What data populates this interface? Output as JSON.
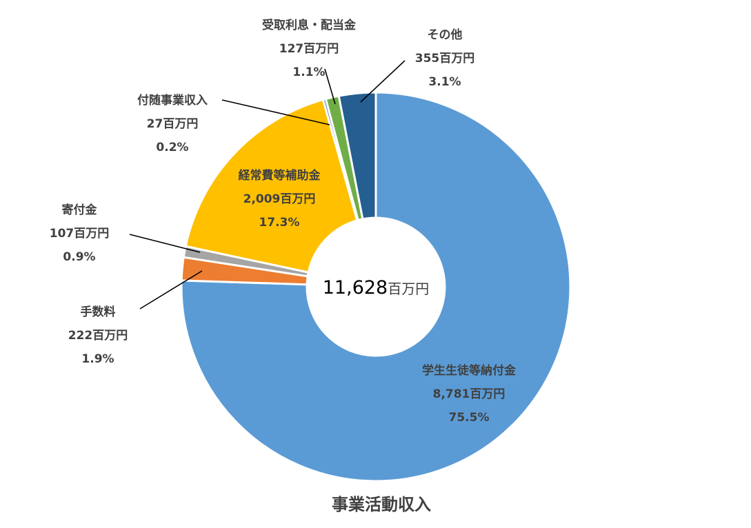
{
  "chart_data": {
    "type": "pie",
    "style": "donut",
    "title": "事業活動収入",
    "total": {
      "value": "11,628",
      "unit": "百万円"
    },
    "unit": "百万円",
    "slices": [
      {
        "name": "学生生徒等納付金",
        "value": 8781,
        "value_label": "8,781百万円",
        "percent": "75.5%",
        "color": "#5B9BD5"
      },
      {
        "name": "手数料",
        "value": 222,
        "value_label": "222百万円",
        "percent": "1.9%",
        "color": "#ED7D31"
      },
      {
        "name": "寄付金",
        "value": 107,
        "value_label": "107百万円",
        "percent": "0.9%",
        "color": "#A5A5A5"
      },
      {
        "name": "経常費等補助金",
        "value": 2009,
        "value_label": "2,009百万円",
        "percent": "17.3%",
        "color": "#FFC000"
      },
      {
        "name": "付随事業収入",
        "value": 27,
        "value_label": "27百万円",
        "percent": "0.2%",
        "color": "#4472C4"
      },
      {
        "name": "受取利息・配当金",
        "value": 127,
        "value_label": "127百万円",
        "percent": "1.1%",
        "color": "#70AD47"
      },
      {
        "name": "その他",
        "value": 355,
        "value_label": "355百万円",
        "percent": "3.1%",
        "color": "#255E91"
      }
    ]
  }
}
